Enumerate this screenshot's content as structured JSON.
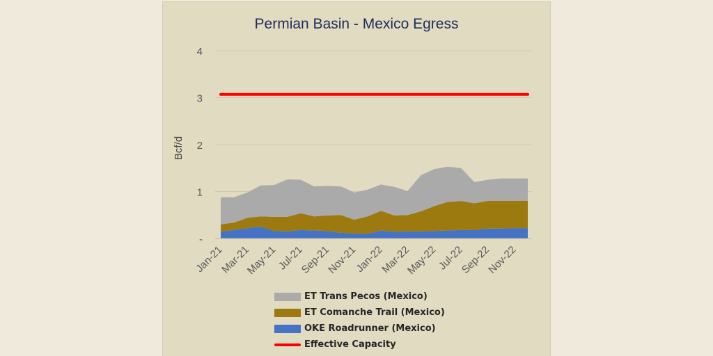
{
  "chart_data": {
    "type": "area",
    "title": "Permian Basin - Mexico Egress",
    "ylabel": "Bcf/d",
    "xlabel": "",
    "ylim": [
      0,
      4
    ],
    "yticks": [
      0,
      1,
      2,
      3,
      4
    ],
    "ytick_labels": [
      "-",
      "1",
      "2",
      "3",
      "4"
    ],
    "grid": true,
    "legend_position": "bottom",
    "x": [
      "Jan-21",
      "Feb-21",
      "Mar-21",
      "Apr-21",
      "May-21",
      "Jun-21",
      "Jul-21",
      "Aug-21",
      "Sep-21",
      "Oct-21",
      "Nov-21",
      "Dec-21",
      "Jan-22",
      "Feb-22",
      "Mar-22",
      "Apr-22",
      "May-22",
      "Jun-22",
      "Jul-22",
      "Aug-22",
      "Sep-22",
      "Oct-22",
      "Nov-22",
      "Dec-22"
    ],
    "xtick_labels": [
      "Jan-21",
      "Mar-21",
      "May-21",
      "Jul-21",
      "Sep-21",
      "Nov-21",
      "Jan-22",
      "Mar-22",
      "May-22",
      "Jul-22",
      "Sep-22",
      "Nov-22"
    ],
    "series": [
      {
        "name": "OKE Roadrunner (Mexico)",
        "color": "#4472c4",
        "values": [
          0.15,
          0.18,
          0.22,
          0.25,
          0.16,
          0.15,
          0.18,
          0.17,
          0.16,
          0.12,
          0.11,
          0.1,
          0.17,
          0.14,
          0.15,
          0.15,
          0.16,
          0.17,
          0.18,
          0.18,
          0.21,
          0.21,
          0.22,
          0.22
        ]
      },
      {
        "name": "ET Comanche Trail (Mexico)",
        "color": "#9c7a10",
        "values": [
          0.15,
          0.16,
          0.22,
          0.22,
          0.3,
          0.31,
          0.36,
          0.3,
          0.33,
          0.38,
          0.29,
          0.37,
          0.42,
          0.35,
          0.35,
          0.43,
          0.53,
          0.61,
          0.62,
          0.57,
          0.59,
          0.59,
          0.58,
          0.58
        ]
      },
      {
        "name": "ET Trans Pecos (Mexico)",
        "color": "#aaaaaa",
        "values": [
          0.58,
          0.54,
          0.54,
          0.66,
          0.68,
          0.8,
          0.71,
          0.64,
          0.63,
          0.61,
          0.58,
          0.57,
          0.56,
          0.61,
          0.51,
          0.77,
          0.79,
          0.75,
          0.7,
          0.45,
          0.45,
          0.48,
          0.48,
          0.48
        ]
      },
      {
        "name": "Effective Capacity",
        "color": "#ff0000",
        "type": "line",
        "values": [
          3.07,
          3.07,
          3.07,
          3.07,
          3.07,
          3.07,
          3.07,
          3.07,
          3.07,
          3.07,
          3.07,
          3.07,
          3.07,
          3.07,
          3.07,
          3.07,
          3.07,
          3.07,
          3.07,
          3.07,
          3.07,
          3.07,
          3.07,
          3.07
        ]
      }
    ]
  },
  "legend": [
    {
      "label": "ET Trans Pecos (Mexico)",
      "color": "#aaaaaa",
      "kind": "area"
    },
    {
      "label": "ET Comanche Trail (Mexico)",
      "color": "#9c7a10",
      "kind": "area"
    },
    {
      "label": "OKE Roadrunner (Mexico)",
      "color": "#4472c4",
      "kind": "area"
    },
    {
      "label": "Effective Capacity",
      "color": "#ff0000",
      "kind": "line"
    }
  ]
}
